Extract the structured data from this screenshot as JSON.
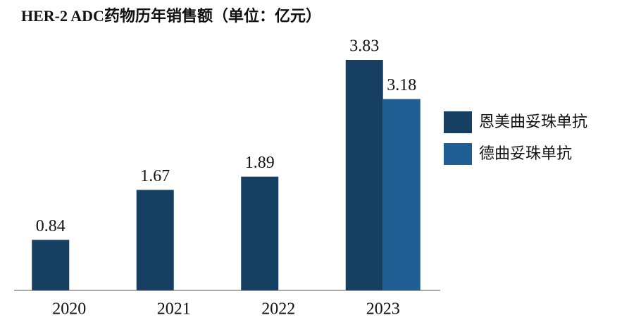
{
  "chart_data": {
    "type": "bar",
    "title": "HER-2 ADC药物历年销售额（单位：亿元）",
    "categories": [
      "2020",
      "2021",
      "2022",
      "2023"
    ],
    "series": [
      {
        "name": "恩美曲妥珠单抗",
        "color": "#173f62",
        "values": [
          0.84,
          1.67,
          1.89,
          3.83
        ]
      },
      {
        "name": "德曲妥珠单抗",
        "color": "#1f5f93",
        "values": [
          null,
          null,
          null,
          3.18
        ]
      }
    ],
    "legend": "right"
  }
}
